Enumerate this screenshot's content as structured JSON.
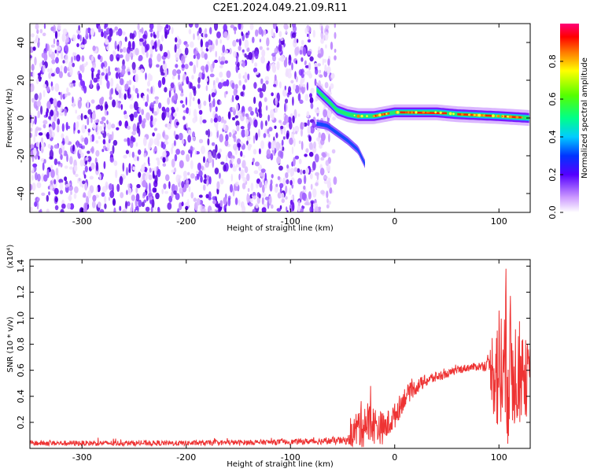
{
  "title": "C2E1.2024.049.21.09.R11",
  "chart_data": [
    {
      "type": "heatmap",
      "xlabel": "Height of straight line (km)",
      "ylabel": "Frequency (Hz)",
      "xlim": [
        -350,
        130
      ],
      "ylim": [
        -50,
        50
      ],
      "xticks": [
        -300,
        -200,
        -100,
        0,
        100
      ],
      "yticks": [
        -40,
        -20,
        0,
        20,
        40
      ],
      "noise_region_xmax": -57,
      "colorbar": {
        "label": "Normalized spectral amplitude",
        "range": [
          0,
          1
        ],
        "ticks": [
          0.0,
          0.2,
          0.4,
          0.6,
          0.8
        ]
      },
      "ridge": {
        "x": [
          -75,
          -62,
          -55,
          -45,
          -35,
          -20,
          0,
          20,
          40,
          60,
          80,
          100,
          130
        ],
        "y": [
          15,
          8,
          4,
          2,
          1,
          1,
          3,
          3,
          3,
          2,
          1.5,
          1,
          0
        ]
      },
      "branches": [
        {
          "x": [
            -75,
            -65,
            -55,
            -45,
            -35,
            -28
          ],
          "y": [
            -3,
            -4,
            -8,
            -12,
            -17,
            -25
          ]
        }
      ]
    },
    {
      "type": "line",
      "xlabel": "Height of straight line (km)",
      "ylabel": "SNR (10 * v/v)",
      "ymultiplier": "(x10⁴)",
      "xlim": [
        -350,
        130
      ],
      "ylim": [
        0,
        1.45
      ],
      "xticks": [
        -300,
        -200,
        -100,
        0,
        100
      ],
      "yticks": [
        0.2,
        0.4,
        0.6,
        0.8,
        1.0,
        1.2,
        1.4
      ],
      "ytick_labels": [
        "0.2",
        "0.4",
        "0.6",
        "0.8",
        "1.0",
        "1.2",
        "1.4"
      ],
      "series": [
        {
          "color": "#ee3333",
          "envelope": {
            "x": [
              -350,
              -200,
              -100,
              -45,
              -40,
              -30,
              -20,
              -10,
              0,
              10,
              20,
              30,
              40,
              50,
              60,
              70,
              80,
              90,
              95,
              100,
              105,
              110,
              115,
              120,
              125,
              130
            ],
            "base": [
              0.04,
              0.04,
              0.05,
              0.06,
              0.12,
              0.2,
              0.18,
              0.15,
              0.25,
              0.4,
              0.47,
              0.52,
              0.55,
              0.57,
              0.6,
              0.62,
              0.63,
              0.64,
              0.62,
              0.58,
              0.6,
              0.62,
              0.6,
              0.58,
              0.55,
              0.5
            ],
            "noise": [
              0.02,
              0.02,
              0.02,
              0.03,
              0.12,
              0.2,
              0.15,
              0.12,
              0.1,
              0.08,
              0.06,
              0.05,
              0.04,
              0.03,
              0.03,
              0.03,
              0.03,
              0.05,
              0.4,
              0.55,
              0.6,
              0.6,
              0.45,
              0.4,
              0.3,
              0.3
            ]
          }
        }
      ]
    }
  ]
}
